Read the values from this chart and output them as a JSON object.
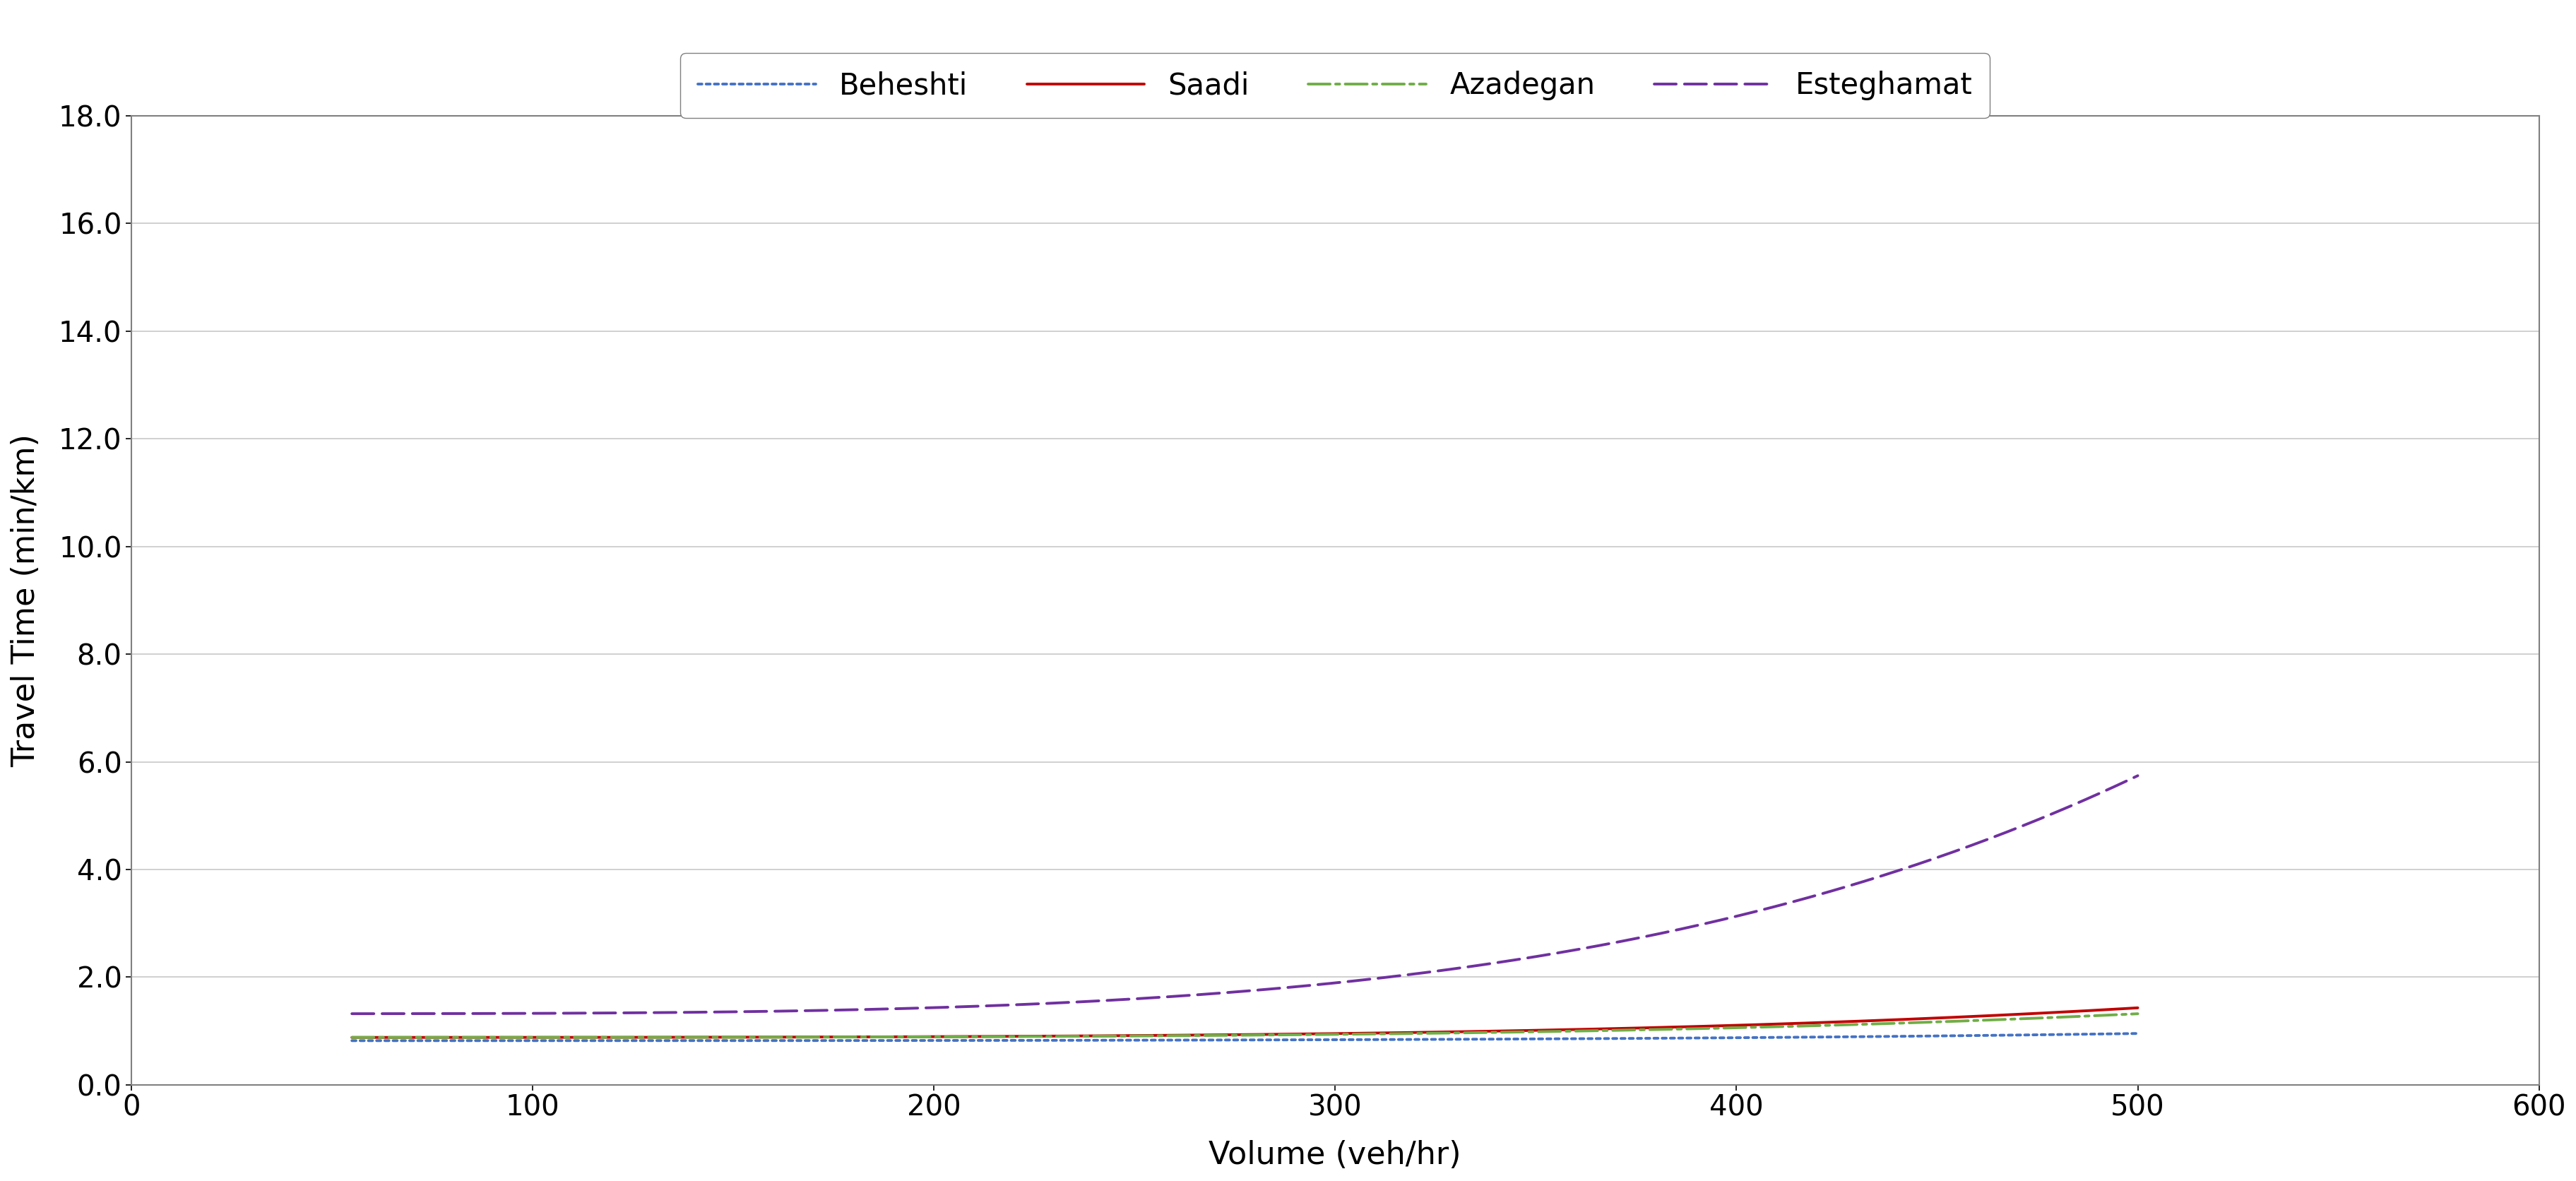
{
  "title": "",
  "xlabel": "Volume (veh/hr)",
  "ylabel": "Travel Time (min/km)",
  "xlim": [
    0,
    600
  ],
  "ylim": [
    0,
    18.0
  ],
  "xticks": [
    0,
    100,
    200,
    300,
    400,
    500,
    600
  ],
  "yticks": [
    0.0,
    2.0,
    4.0,
    6.0,
    8.0,
    10.0,
    12.0,
    14.0,
    16.0,
    18.0
  ],
  "legend_labels": [
    "Beheshti",
    "Saadi",
    "Azadegan",
    "Esteghamat"
  ],
  "series": {
    "Beheshti": {
      "color": "#4472C4",
      "linewidth": 2.8,
      "t0": 0.82,
      "capacity": 490,
      "alpha": 0.15,
      "beta": 4.0
    },
    "Saadi": {
      "color": "#C00000",
      "linewidth": 2.8,
      "t0": 0.88,
      "capacity": 350,
      "alpha": 0.15,
      "beta": 4.0
    },
    "Azadegan": {
      "color": "#70AD47",
      "linewidth": 2.8,
      "t0": 0.88,
      "capacity": 370,
      "alpha": 0.15,
      "beta": 4.0
    },
    "Esteghamat": {
      "color": "#7030A0",
      "linewidth": 2.8,
      "t0": 1.32,
      "capacity": 230,
      "alpha": 0.15,
      "beta": 4.0
    }
  },
  "x_start": 55,
  "x_end": 500,
  "background_color": "#FFFFFF",
  "grid_color": "#C8C8C8",
  "spine_color": "#808080"
}
